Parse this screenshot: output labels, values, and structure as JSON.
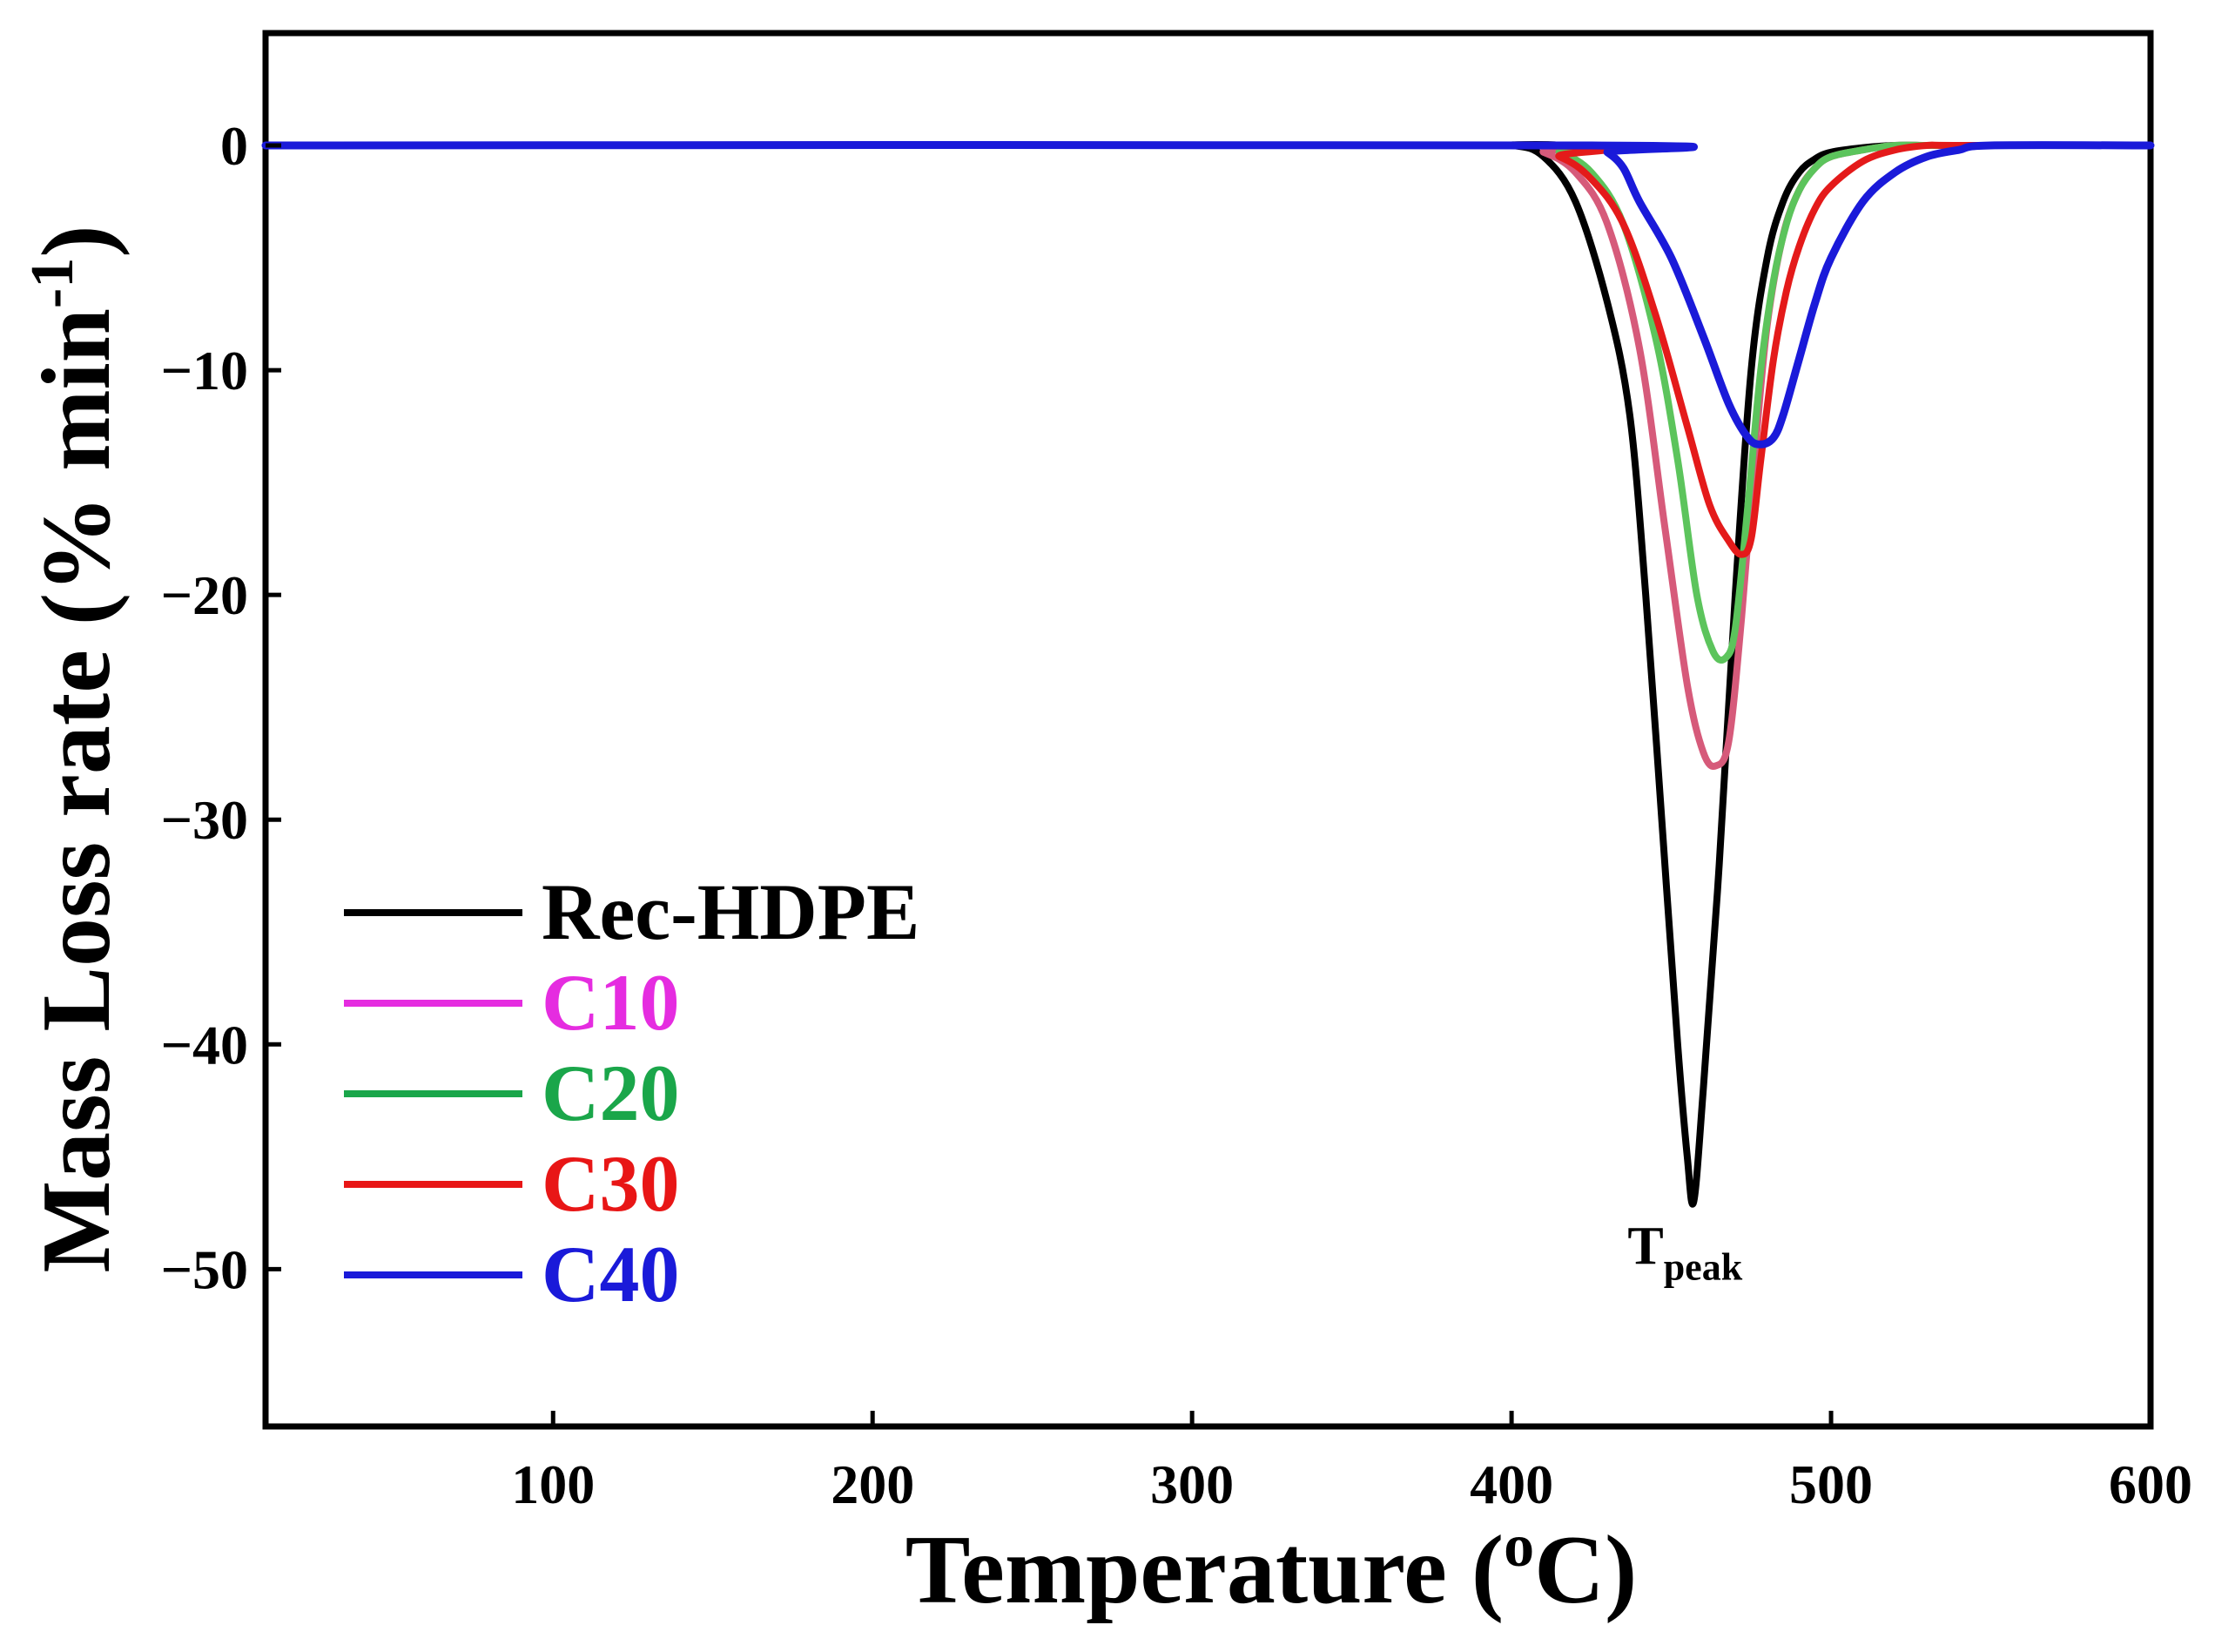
{
  "chart_data": {
    "type": "line",
    "title": "",
    "xlabel": "Temperature (",
    "xlabel_sup": "o",
    "xlabel_end": "C)",
    "ylabel": "Mass Loss rate (% min",
    "ylabel_sup": "-1",
    "ylabel_end": ")",
    "xlim": [
      10,
      600
    ],
    "ylim": [
      -57,
      5
    ],
    "x_ticks": [
      100,
      200,
      300,
      400,
      500,
      600
    ],
    "x_tick_labels": [
      "100",
      "200",
      "300",
      "400",
      "500",
      "600"
    ],
    "y_ticks": [
      0,
      -10,
      -20,
      -30,
      -40,
      -50
    ],
    "y_tick_labels": [
      "0",
      "−10",
      "−20",
      "−30",
      "−40",
      "−50"
    ],
    "grid": false,
    "legend_position": "bottom-left",
    "annotation": {
      "text": "T",
      "sub": "peak",
      "x": 457,
      "y": -49
    },
    "series": [
      {
        "name": "Rec-HDPE",
        "color": "#000000",
        "x": [
          10,
          380,
          400,
          410,
          420,
          430,
          437,
          442,
          447,
          452,
          455,
          457,
          460,
          465,
          470,
          475,
          480,
          485,
          490,
          495,
          500,
          510,
          520,
          530,
          540,
          600
        ],
        "y": [
          0,
          0,
          0,
          -0.5,
          -2.5,
          -7,
          -12,
          -20,
          -30,
          -40,
          -45,
          -47,
          -42,
          -32,
          -20,
          -10,
          -5,
          -2.5,
          -1.2,
          -0.6,
          -0.3,
          -0.1,
          0,
          0,
          0,
          0
        ]
      },
      {
        "name": "C10",
        "color": "#d65a7a",
        "x": [
          10,
          400,
          410,
          420,
          430,
          440,
          448,
          455,
          460,
          464,
          468,
          472,
          476,
          480,
          485,
          490,
          495,
          500,
          510,
          520,
          530,
          540,
          600
        ],
        "y": [
          0,
          0,
          -0.3,
          -1.2,
          -3.5,
          -9,
          -17,
          -24,
          -27,
          -27.6,
          -26.5,
          -21,
          -14,
          -8,
          -4,
          -2,
          -1,
          -0.5,
          -0.2,
          0,
          0,
          0,
          0
        ]
      },
      {
        "name": "C20",
        "color": "#5cc45c",
        "x": [
          10,
          405,
          415,
          425,
          435,
          445,
          452,
          458,
          463,
          467,
          470,
          474,
          478,
          482,
          486,
          490,
          495,
          500,
          510,
          520,
          530,
          540,
          600
        ],
        "y": [
          0,
          0,
          -0.3,
          -1.2,
          -3.5,
          -8.5,
          -14,
          -20,
          -22.5,
          -22.8,
          -21.5,
          -16,
          -10,
          -6,
          -3.5,
          -2,
          -1,
          -0.5,
          -0.2,
          0,
          0,
          0,
          0
        ]
      },
      {
        "name": "C30",
        "color": "#e41a1a",
        "x": [
          10,
          400,
          415,
          425,
          435,
          445,
          455,
          462,
          468,
          472,
          475,
          478,
          482,
          486,
          490,
          495,
          500,
          510,
          520,
          530,
          540,
          600
        ],
        "y": [
          0,
          0,
          -0.5,
          -1.5,
          -3.5,
          -7.5,
          -12.5,
          -16,
          -17.6,
          -18.2,
          -17.5,
          -14,
          -9.5,
          -6.5,
          -4.5,
          -2.8,
          -1.8,
          -0.7,
          -0.2,
          0,
          0,
          0
        ]
      },
      {
        "name": "C40",
        "color": "#1a1ad9",
        "x": [
          10,
          425,
          430,
          435,
          440,
          450,
          460,
          468,
          474,
          478,
          482,
          485,
          490,
          495,
          500,
          510,
          520,
          530,
          540,
          550,
          600
        ],
        "y": [
          0,
          0,
          -0.3,
          -1,
          -2.5,
          -5,
          -8.5,
          -11.5,
          -13,
          -13.3,
          -13,
          -12,
          -9.5,
          -7,
          -5,
          -2.5,
          -1.2,
          -0.5,
          -0.2,
          0,
          0
        ]
      }
    ]
  }
}
